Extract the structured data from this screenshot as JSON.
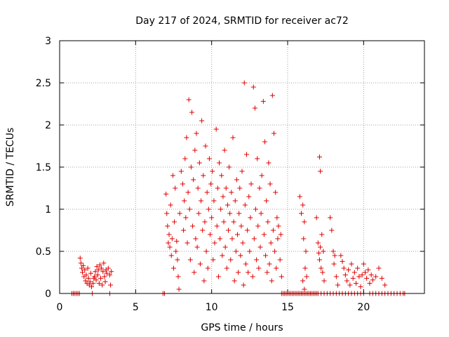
{
  "chart_data": {
    "type": "scatter",
    "title": "Day 217 of 2024, SRMTID for receiver ac72",
    "xlabel": "GPS time / hours",
    "ylabel": "SRMTID / TECUs",
    "xlim": [
      0,
      24
    ],
    "ylim": [
      0,
      3
    ],
    "xticks": [
      0,
      5,
      10,
      15,
      20
    ],
    "xtick_labels": [
      "0",
      "5",
      "10",
      "15",
      "20"
    ],
    "yticks": [
      0,
      0.5,
      1,
      1.5,
      2,
      2.5,
      3
    ],
    "ytick_labels": [
      "0",
      "0.5",
      "1",
      "1.5",
      "2",
      "2.5",
      "3"
    ],
    "grid": true,
    "legend": "none",
    "marker": "+",
    "color": "#e00000",
    "series": [
      {
        "points": [
          [
            0.8,
            0
          ],
          [
            0.9,
            0
          ],
          [
            1.0,
            0
          ],
          [
            1.1,
            0
          ],
          [
            1.2,
            0
          ],
          [
            1.3,
            0
          ],
          [
            1.35,
            0.42
          ],
          [
            1.4,
            0.36
          ],
          [
            1.45,
            0.3
          ],
          [
            1.5,
            0.25
          ],
          [
            1.55,
            0.33
          ],
          [
            1.6,
            0.2
          ],
          [
            1.65,
            0.28
          ],
          [
            1.7,
            0.15
          ],
          [
            1.75,
            0.22
          ],
          [
            1.8,
            0.12
          ],
          [
            1.85,
            0.3
          ],
          [
            1.9,
            0.18
          ],
          [
            1.95,
            0.1
          ],
          [
            2.0,
            0.14
          ],
          [
            2.05,
            0.24
          ],
          [
            2.1,
            0.08
          ],
          [
            2.15,
            0
          ],
          [
            2.2,
            0.12
          ],
          [
            2.25,
            0.18
          ],
          [
            2.3,
            0.2
          ],
          [
            2.35,
            0.26
          ],
          [
            2.4,
            0.16
          ],
          [
            2.45,
            0.32
          ],
          [
            2.5,
            0.22
          ],
          [
            2.55,
            0.28
          ],
          [
            2.6,
            0.12
          ],
          [
            2.65,
            0.34
          ],
          [
            2.7,
            0.18
          ],
          [
            2.75,
            0.3
          ],
          [
            2.8,
            0.1
          ],
          [
            2.85,
            0.26
          ],
          [
            2.9,
            0.36
          ],
          [
            2.95,
            0.2
          ],
          [
            3.0,
            0.14
          ],
          [
            3.05,
            0.28
          ],
          [
            3.1,
            0.24
          ],
          [
            3.2,
            0.3
          ],
          [
            3.3,
            0.22
          ],
          [
            3.35,
            0.1
          ],
          [
            3.4,
            0.26
          ],
          [
            3.3,
            0
          ],
          [
            6.8,
            0
          ],
          [
            6.9,
            0
          ],
          [
            7.0,
            1.18
          ],
          [
            7.05,
            0.95
          ],
          [
            7.1,
            0.8
          ],
          [
            7.15,
            0.6
          ],
          [
            7.2,
            0.7
          ],
          [
            7.25,
            0.55
          ],
          [
            7.3,
            1.05
          ],
          [
            7.35,
            0.45
          ],
          [
            7.4,
            0.65
          ],
          [
            7.45,
            1.4
          ],
          [
            7.5,
            0.3
          ],
          [
            7.55,
            0.85
          ],
          [
            7.6,
            1.25
          ],
          [
            7.65,
            0.5
          ],
          [
            7.7,
            0.62
          ],
          [
            7.75,
            0.4
          ],
          [
            7.8,
            0.2
          ],
          [
            7.85,
            0.05
          ],
          [
            7.9,
            0.95
          ],
          [
            8.0,
            1.45
          ],
          [
            8.1,
            1.3
          ],
          [
            8.15,
            0.75
          ],
          [
            8.2,
            1.1
          ],
          [
            8.25,
            1.6
          ],
          [
            8.3,
            0.9
          ],
          [
            8.35,
            1.85
          ],
          [
            8.4,
            0.6
          ],
          [
            8.45,
            1.2
          ],
          [
            8.5,
            2.3
          ],
          [
            8.55,
            1.0
          ],
          [
            8.6,
            0.4
          ],
          [
            8.65,
            1.5
          ],
          [
            8.7,
            2.15
          ],
          [
            8.75,
            0.8
          ],
          [
            8.8,
            1.35
          ],
          [
            8.85,
            0.25
          ],
          [
            8.9,
            1.7
          ],
          [
            8.95,
            0.65
          ],
          [
            9.0,
            1.9
          ],
          [
            9.05,
            0.55
          ],
          [
            9.1,
            1.25
          ],
          [
            9.15,
            0.95
          ],
          [
            9.2,
            1.55
          ],
          [
            9.25,
            0.35
          ],
          [
            9.3,
            1.1
          ],
          [
            9.35,
            2.05
          ],
          [
            9.4,
            0.75
          ],
          [
            9.45,
            1.4
          ],
          [
            9.5,
            0.15
          ],
          [
            9.55,
            0.85
          ],
          [
            9.6,
            1.75
          ],
          [
            9.65,
            0.5
          ],
          [
            9.7,
            1.2
          ],
          [
            9.75,
            0.3
          ],
          [
            9.8,
            1.0
          ],
          [
            9.85,
            1.6
          ],
          [
            9.9,
            0.7
          ],
          [
            9.95,
            1.3
          ],
          [
            10.0,
            0.9
          ],
          [
            10.05,
            1.45
          ],
          [
            10.1,
            0.4
          ],
          [
            10.15,
            1.1
          ],
          [
            10.2,
            0.6
          ],
          [
            10.3,
            1.95
          ],
          [
            10.35,
            0.8
          ],
          [
            10.4,
            1.25
          ],
          [
            10.45,
            0.2
          ],
          [
            10.5,
            1.55
          ],
          [
            10.55,
            0.65
          ],
          [
            10.6,
            1.0
          ],
          [
            10.65,
            1.4
          ],
          [
            10.7,
            0.45
          ],
          [
            10.75,
            1.15
          ],
          [
            10.8,
            0.85
          ],
          [
            10.85,
            1.7
          ],
          [
            10.9,
            0.55
          ],
          [
            10.95,
            1.25
          ],
          [
            11.0,
            0.3
          ],
          [
            11.05,
            1.05
          ],
          [
            11.1,
            0.75
          ],
          [
            11.15,
            1.5
          ],
          [
            11.2,
            0.95
          ],
          [
            11.25,
            0.4
          ],
          [
            11.3,
            1.2
          ],
          [
            11.35,
            0.65
          ],
          [
            11.4,
            1.85
          ],
          [
            11.45,
            0.85
          ],
          [
            11.5,
            0.15
          ],
          [
            11.55,
            1.1
          ],
          [
            11.6,
            0.5
          ],
          [
            11.65,
            1.35
          ],
          [
            11.7,
            0.7
          ],
          [
            11.75,
            0.25
          ],
          [
            11.8,
            0.95
          ],
          [
            11.85,
            1.25
          ],
          [
            11.9,
            0.45
          ],
          [
            11.95,
            0.8
          ],
          [
            12.0,
            1.45
          ],
          [
            12.05,
            0.6
          ],
          [
            12.1,
            0.1
          ],
          [
            12.15,
            2.5
          ],
          [
            12.2,
            1.05
          ],
          [
            12.25,
            0.35
          ],
          [
            12.3,
            1.65
          ],
          [
            12.35,
            0.75
          ],
          [
            12.4,
            0.25
          ],
          [
            12.45,
            1.15
          ],
          [
            12.5,
            0.5
          ],
          [
            12.55,
            0.9
          ],
          [
            12.6,
            1.3
          ],
          [
            12.7,
            0.2
          ],
          [
            12.75,
            2.45
          ],
          [
            12.8,
            0.65
          ],
          [
            12.85,
            2.2
          ],
          [
            12.9,
            1.0
          ],
          [
            12.95,
            0.4
          ],
          [
            13.0,
            1.6
          ],
          [
            13.05,
            0.8
          ],
          [
            13.1,
            0.3
          ],
          [
            13.15,
            1.25
          ],
          [
            13.2,
            0.55
          ],
          [
            13.25,
            0.95
          ],
          [
            13.3,
            1.4
          ],
          [
            13.4,
            2.28
          ],
          [
            13.45,
            0.7
          ],
          [
            13.5,
            1.8
          ],
          [
            13.55,
            0.45
          ],
          [
            13.6,
            1.1
          ],
          [
            13.65,
            0.25
          ],
          [
            13.7,
            0.85
          ],
          [
            13.75,
            1.55
          ],
          [
            13.8,
            0.35
          ],
          [
            13.85,
            1.3
          ],
          [
            13.9,
            0.6
          ],
          [
            13.95,
            0.15
          ],
          [
            14.0,
            2.35
          ],
          [
            14.05,
            0.75
          ],
          [
            14.1,
            1.9
          ],
          [
            14.15,
            0.5
          ],
          [
            14.2,
            1.2
          ],
          [
            14.25,
            0.3
          ],
          [
            14.3,
            0.9
          ],
          [
            14.35,
            0.65
          ],
          [
            14.4,
            0.8
          ],
          [
            14.5,
            0.4
          ],
          [
            14.55,
            0.7
          ],
          [
            14.6,
            0.2
          ],
          [
            14.6,
            0
          ],
          [
            14.7,
            0
          ],
          [
            14.8,
            0
          ],
          [
            14.9,
            0
          ],
          [
            15.0,
            0
          ],
          [
            15.1,
            0
          ],
          [
            15.2,
            0
          ],
          [
            15.3,
            0
          ],
          [
            15.4,
            0
          ],
          [
            15.5,
            0
          ],
          [
            15.6,
            0
          ],
          [
            15.7,
            0
          ],
          [
            15.8,
            0
          ],
          [
            15.9,
            0
          ],
          [
            15.8,
            1.15
          ],
          [
            15.9,
            0.95
          ],
          [
            16.0,
            1.05
          ],
          [
            16.05,
            0.65
          ],
          [
            16.1,
            0.85
          ],
          [
            16.15,
            0.3
          ],
          [
            16.2,
            0.5
          ],
          [
            16.25,
            0.2
          ],
          [
            16.0,
            0.15
          ],
          [
            16.1,
            0.05
          ],
          [
            16.0,
            0
          ],
          [
            16.1,
            0
          ],
          [
            16.2,
            0
          ],
          [
            16.3,
            0
          ],
          [
            16.4,
            0
          ],
          [
            16.5,
            0
          ],
          [
            16.6,
            0
          ],
          [
            16.7,
            0
          ],
          [
            16.8,
            0
          ],
          [
            16.9,
            0
          ],
          [
            16.9,
            0.9
          ],
          [
            17.0,
            0.6
          ],
          [
            17.05,
            0.48
          ],
          [
            17.1,
            0.4
          ],
          [
            17.15,
            0.55
          ],
          [
            17.2,
            0.3
          ],
          [
            17.25,
            0.7
          ],
          [
            17.3,
            0.25
          ],
          [
            17.35,
            0.5
          ],
          [
            17.1,
            1.62
          ],
          [
            17.15,
            1.45
          ],
          [
            17.4,
            0.15
          ],
          [
            17.0,
            0
          ],
          [
            17.2,
            0
          ],
          [
            17.4,
            0
          ],
          [
            17.6,
            0
          ],
          [
            17.8,
            0
          ],
          [
            18.0,
            0
          ],
          [
            18.2,
            0
          ],
          [
            18.4,
            0
          ],
          [
            18.6,
            0
          ],
          [
            18.8,
            0
          ],
          [
            17.8,
            0.9
          ],
          [
            17.9,
            0.75
          ],
          [
            18.0,
            0.5
          ],
          [
            18.05,
            0.35
          ],
          [
            18.1,
            0.45
          ],
          [
            18.2,
            0.2
          ],
          [
            18.3,
            0.1
          ],
          [
            18.5,
            0.45
          ],
          [
            18.6,
            0.38
          ],
          [
            18.7,
            0.3
          ],
          [
            18.8,
            0.22
          ],
          [
            18.9,
            0.15
          ],
          [
            19.0,
            0.28
          ],
          [
            19.1,
            0.1
          ],
          [
            19.2,
            0.35
          ],
          [
            19.3,
            0.18
          ],
          [
            19.4,
            0.25
          ],
          [
            19.5,
            0.12
          ],
          [
            19.6,
            0.3
          ],
          [
            19.7,
            0.2
          ],
          [
            19.8,
            0.08
          ],
          [
            19.9,
            0.22
          ],
          [
            19.0,
            0
          ],
          [
            19.2,
            0
          ],
          [
            19.4,
            0
          ],
          [
            19.6,
            0
          ],
          [
            19.8,
            0
          ],
          [
            20.0,
            0
          ],
          [
            20.0,
            0.35
          ],
          [
            20.1,
            0.25
          ],
          [
            20.2,
            0.18
          ],
          [
            20.3,
            0.28
          ],
          [
            20.4,
            0.12
          ],
          [
            20.5,
            0.22
          ],
          [
            20.6,
            0.16
          ],
          [
            20.8,
            0.2
          ],
          [
            21.0,
            0.3
          ],
          [
            21.2,
            0.18
          ],
          [
            21.4,
            0.1
          ],
          [
            20.4,
            0
          ],
          [
            20.6,
            0
          ],
          [
            20.8,
            0
          ],
          [
            21.0,
            0
          ],
          [
            21.2,
            0
          ],
          [
            21.4,
            0
          ],
          [
            21.6,
            0
          ],
          [
            21.8,
            0
          ],
          [
            22.0,
            0
          ],
          [
            22.2,
            0
          ],
          [
            22.4,
            0
          ],
          [
            22.6,
            0
          ],
          [
            22.7,
            0
          ]
        ]
      }
    ]
  }
}
